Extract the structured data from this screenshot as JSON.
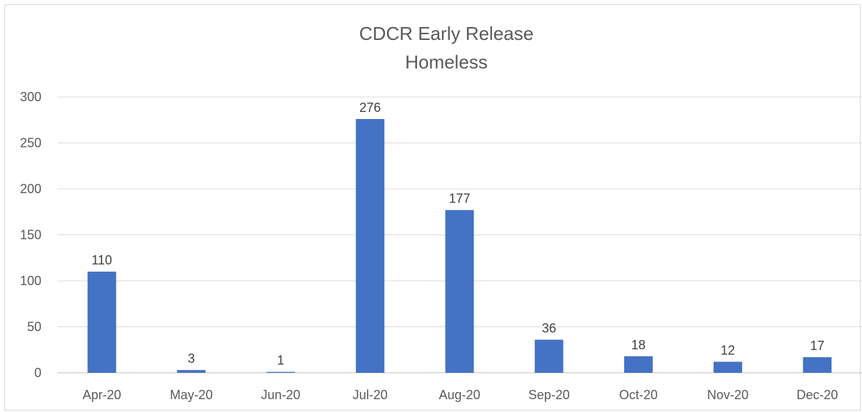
{
  "chart_data": {
    "type": "bar",
    "title": [
      "CDCR Early Release",
      "Homeless"
    ],
    "categories": [
      "Apr-20",
      "May-20",
      "Jun-20",
      "Jul-20",
      "Aug-20",
      "Sep-20",
      "Oct-20",
      "Nov-20",
      "Dec-20"
    ],
    "series": [
      {
        "values": [
          110,
          3,
          1,
          276,
          177,
          36,
          18,
          12,
          17
        ]
      }
    ],
    "yticks": [
      0,
      50,
      100,
      150,
      200,
      250,
      300
    ],
    "ylim": [
      0,
      300
    ],
    "xlabel": "",
    "ylabel": "",
    "grid": true,
    "legend": "none",
    "data_labels": true,
    "bar_color": "#4472c4"
  }
}
